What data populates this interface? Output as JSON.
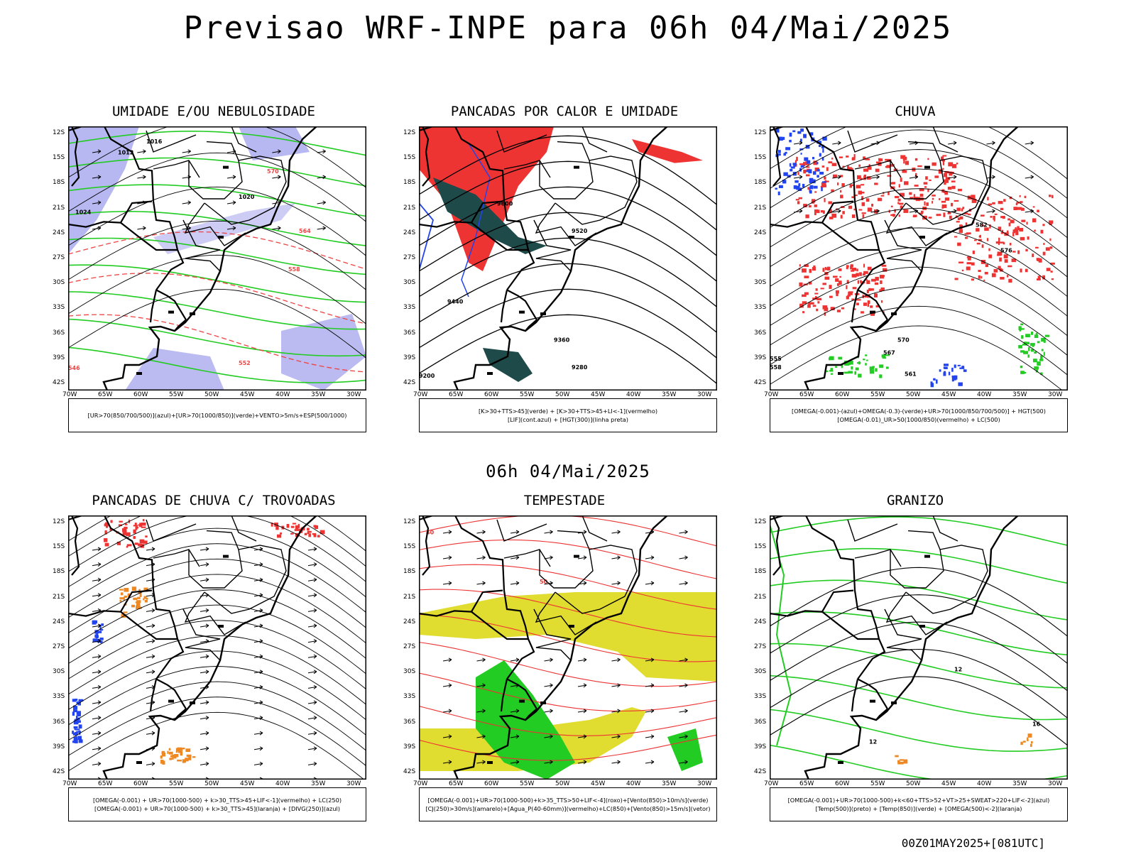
{
  "title": "Previsao WRF-INPE  para 06h 04/Mai/2025",
  "subtitle": "06h 04/Mai/2025",
  "footer": "00Z01MAY2025+[081UTC]",
  "lat_labels": [
    "12S",
    "15S",
    "18S",
    "21S",
    "24S",
    "27S",
    "30S",
    "33S",
    "36S",
    "39S",
    "42S"
  ],
  "lon_labels": [
    "70W",
    "65W",
    "60W",
    "55W",
    "50W",
    "45W",
    "40W",
    "35W",
    "30W"
  ],
  "panels": [
    {
      "title": "UMIDADE E/OU NEBULOSIDADE",
      "legend": [
        "[UR>70(850/700/500)](azul)+[UR>70(1000/850)](verde)+VENTO>5m/s+ESP(500/1000)"
      ],
      "contour_labels": [
        "1012",
        "1016",
        "1020",
        "1024",
        "570",
        "564",
        "558",
        "552",
        "546"
      ],
      "colors": {
        "shade": "#aaaaee",
        "line": "#22cc22",
        "red": "#ee4444"
      }
    },
    {
      "title": "PANCADAS POR CALOR E UMIDADE",
      "legend": [
        "[K>30+TTS>45](verde) + [K>30+TTS>45+LI<-1](vermelho)",
        "[LIF](cont.azul) + [HGT(300)](linha preta)"
      ],
      "contour_labels": [
        "9600",
        "9520",
        "9440",
        "9360",
        "9280",
        "9200"
      ],
      "colors": {
        "red": "#ee3333",
        "teal": "#1f4a4a",
        "blue": "#2244ee"
      }
    },
    {
      "title": "CHUVA",
      "legend": [
        "[OMEGA(-0.001)-(azul)+OMEGA(-0.3)-(verde)+UR>70(1000/850/700/500)] + HGT(500)",
        "[OMEGA(-0.01)_UR>50(1000/850)(vermelho) + LC(500)"
      ],
      "contour_labels": [
        "582",
        "576",
        "570",
        "567",
        "561",
        "558",
        "555"
      ],
      "colors": {
        "red": "#ee3333",
        "blue": "#2244ee",
        "green": "#22cc22"
      }
    },
    {
      "title": "PANCADAS DE CHUVA C/ TROVOADAS",
      "legend": [
        "[OMEGA(-0.001) + UR>70(1000-500) + k>30_TTS>45+LIF<-1](vermelho) + LC(250)",
        "[OMEGA(-0.001) + UR>70(1000-500) + k>30_TTS>45](laranja) + [DIVG(250)](azul)"
      ],
      "contour_labels": [],
      "colors": {
        "red": "#ee3333",
        "orange": "#ee8822",
        "blue": "#2244ee"
      }
    },
    {
      "title": "TEMPESTADE",
      "legend": [
        "[OMEGA(-0.001)+UR>70(1000-500)+k>35_TTS>50+LIF<-4](roxo)+[Vento(850)>10m/s](verde)",
        "[CJ(250)>30m/s](amarelo)+[Agua_P(40-60mm)](vermelho)+LC(850)+[Vento(850)>15m/s](vetor)"
      ],
      "contour_labels": [
        "40",
        "50"
      ],
      "colors": {
        "yellow": "#e0dc30",
        "green": "#22cc22",
        "red": "#ee3333"
      }
    },
    {
      "title": "GRANIZO",
      "legend": [
        "[OMEGA(-0.001)+UR>70(1000-500)+k<60+TTS>52+VT>25+SWEAT>220+LIF<-2](azul)",
        "[Temp(500)](preto) + [Temp(850)](verde) + [OMEGA(500)<-2](laranja)"
      ],
      "contour_labels": [
        "12",
        "16",
        "12"
      ],
      "colors": {
        "green": "#22cc22",
        "orange": "#ee8822"
      }
    }
  ]
}
